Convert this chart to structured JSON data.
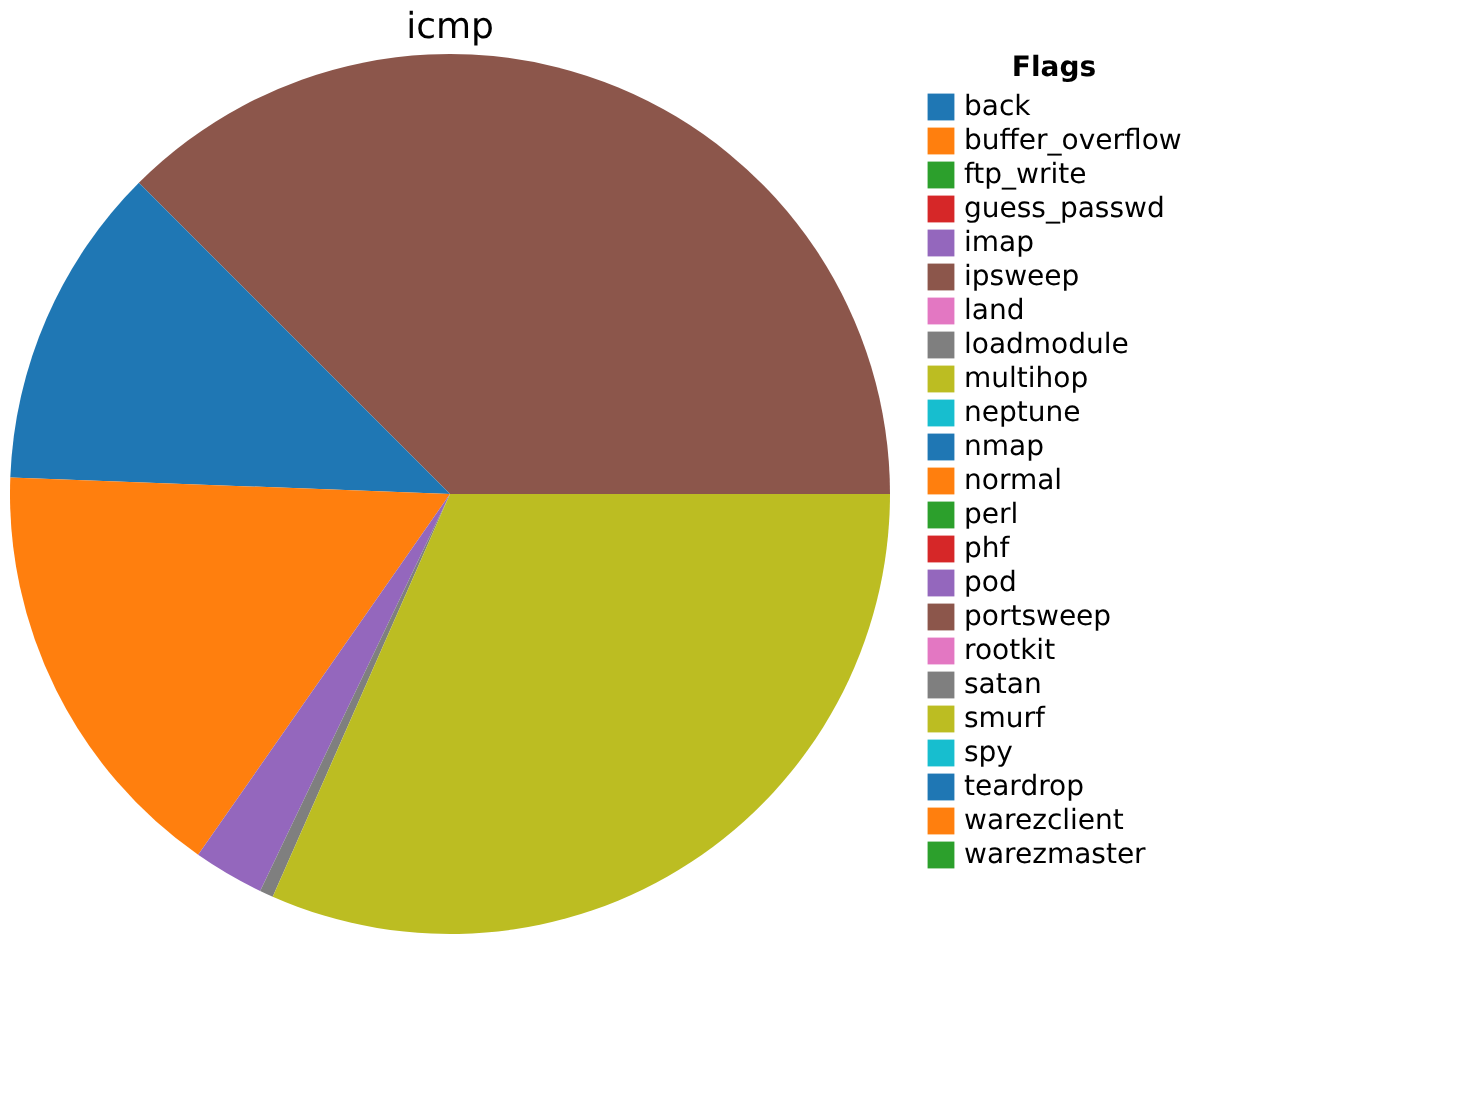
{
  "chart_data": {
    "type": "pie",
    "title": "icmp",
    "legend_title": "Flags",
    "legend": "right",
    "categories": [
      "back",
      "buffer_overflow",
      "ftp_write",
      "guess_passwd",
      "imap",
      "ipsweep",
      "land",
      "loadmodule",
      "multihop",
      "neptune",
      "nmap",
      "normal",
      "perl",
      "phf",
      "pod",
      "portsweep",
      "rootkit",
      "satan",
      "smurf",
      "spy",
      "teardrop",
      "warezclient",
      "warezmaster"
    ],
    "values": [
      0,
      0,
      0,
      0,
      0,
      37.5,
      0,
      0,
      0,
      0,
      11.9,
      15.9,
      0,
      0,
      2.6,
      0,
      0,
      0.5,
      31.6,
      0,
      0,
      0,
      0
    ],
    "colors": [
      "#1f77b4",
      "#ff7f0e",
      "#2ca02c",
      "#d62728",
      "#9467bd",
      "#8c564b",
      "#e377c2",
      "#7f7f7f",
      "#bcbd22",
      "#17becf",
      "#1f77b4",
      "#ff7f0e",
      "#2ca02c",
      "#d62728",
      "#9467bd",
      "#8c564b",
      "#e377c2",
      "#7f7f7f",
      "#bcbd22",
      "#17becf",
      "#1f77b4",
      "#ff7f0e",
      "#2ca02c"
    ]
  }
}
